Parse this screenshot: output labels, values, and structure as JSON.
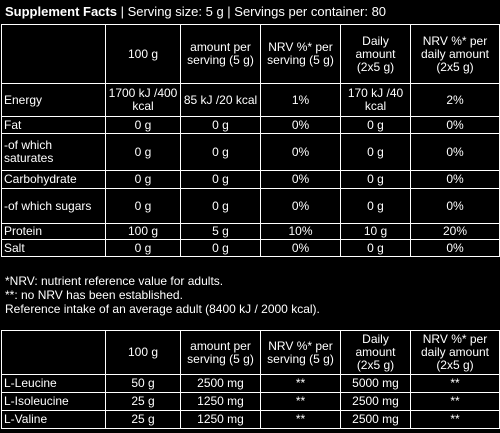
{
  "title": {
    "bold": "Supplement Facts",
    "rest": " | Serving size: 5 g | Servings per container: 80"
  },
  "header": [
    "",
    "100 g",
    "amount per serving (5 g)",
    "NRV %* per serving (5 g)",
    "Daily amount (2x5 g)",
    "NRV %* per daily amount (2x5 g)"
  ],
  "rows": [
    [
      "Energy",
      "1700 kJ /400 kcal",
      "85 kJ /20 kcal",
      "1%",
      "170 kJ /40 kcal",
      "2%"
    ],
    [
      "Fat",
      "0 g",
      "0 g",
      "0%",
      "0 g",
      "0%"
    ],
    [
      "-of which saturates",
      "0 g",
      "0 g",
      "0%",
      "0 g",
      "0%"
    ],
    [
      "Carbohydrate",
      "0 g",
      "0 g",
      "0%",
      "0 g",
      "0%"
    ],
    [
      "-of which sugars",
      "0 g",
      "0 g",
      "0%",
      "0 g",
      "0%"
    ],
    [
      "Protein",
      "100 g",
      "5 g",
      "10%",
      "10 g",
      "20%"
    ],
    [
      "Salt",
      "0 g",
      "0 g",
      "0%",
      "0 g",
      "0%"
    ]
  ],
  "notes": [
    "*NRV: nutrient reference value for adults.",
    "**: no NRV has been established.",
    "Reference intake of an average adult (8400 kJ / 2000 kcal)."
  ],
  "header2": [
    "",
    "100 g",
    "amount per serving (5 g)",
    "NRV %* per serving (5 g)",
    "Daily amount (2x5 g)",
    "NRV %* per daily amount (2x5 g)"
  ],
  "rows2": [
    [
      "L-Leucine",
      "50 g",
      "2500 mg",
      "**",
      "5000 mg",
      "**"
    ],
    [
      "L-Isoleucine",
      "25 g",
      "1250 mg",
      "**",
      "2500 mg",
      "**"
    ],
    [
      "L-Valine",
      "25 g",
      "1250 mg",
      "**",
      "2500 mg",
      "**"
    ]
  ]
}
